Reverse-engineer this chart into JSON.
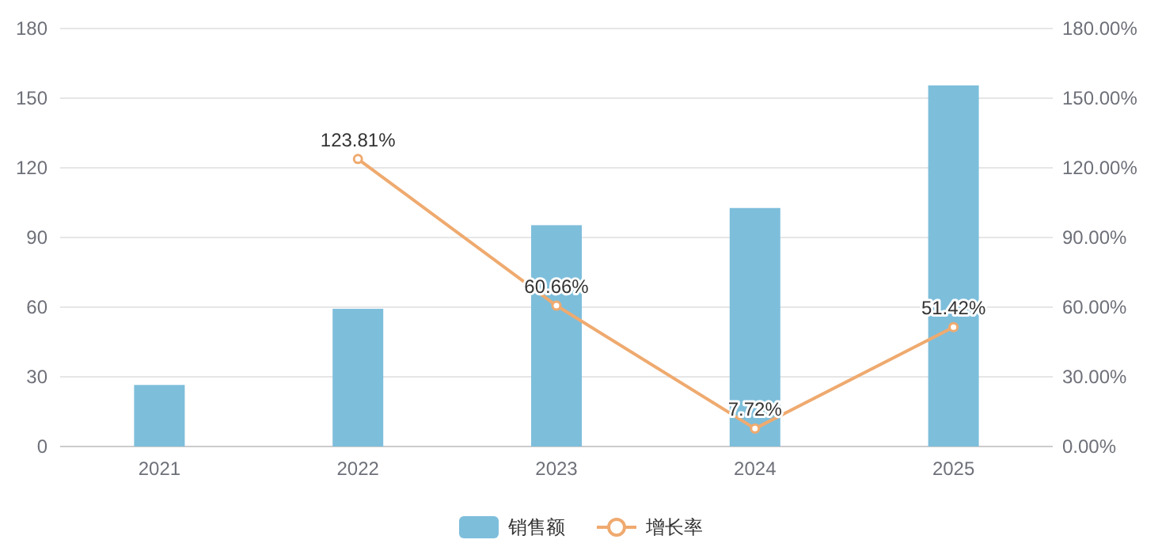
{
  "chart_data": {
    "type": "bar",
    "categories": [
      "2021",
      "2022",
      "2023",
      "2024",
      "2025"
    ],
    "series": [
      {
        "name": "销售额",
        "color": "#7dbedb",
        "values": [
          26.5,
          59.3,
          95.3,
          102.7,
          155.5
        ]
      },
      {
        "name": "增长率",
        "type": "line",
        "axis": "y2",
        "color": "#efaa6f",
        "marker": "circle",
        "values": [
          null,
          123.81,
          60.66,
          7.72,
          51.42
        ],
        "value_labels": [
          null,
          "123.81%",
          "60.66%",
          "7.72%",
          "51.42%"
        ]
      }
    ],
    "ylim": [
      0,
      180
    ],
    "yticks": [
      0,
      30,
      60,
      90,
      120,
      150,
      180
    ],
    "y2lim": [
      0,
      180
    ],
    "y2ticks": [
      {
        "value": 0,
        "label": "0.00%"
      },
      {
        "value": 30,
        "label": "30.00%"
      },
      {
        "value": 60,
        "label": "60.00%"
      },
      {
        "value": 90,
        "label": "90.00%"
      },
      {
        "value": 120,
        "label": "120.00%"
      },
      {
        "value": 150,
        "label": "150.00%"
      },
      {
        "value": 180,
        "label": "180.00%"
      }
    ],
    "grid": "y",
    "legend": "bottom"
  }
}
